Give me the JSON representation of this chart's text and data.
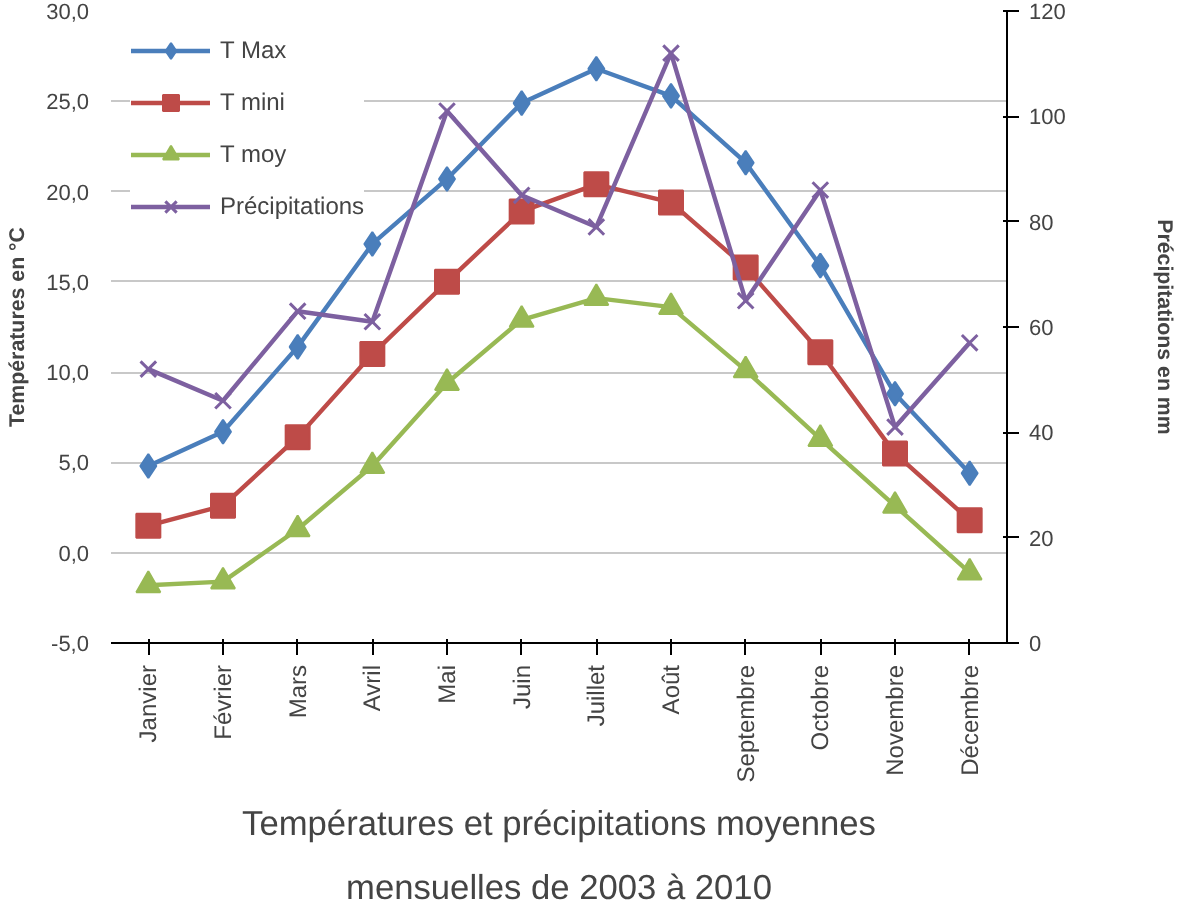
{
  "chart_data": {
    "type": "line",
    "title": "Températures et précipitations moyennes\nmensuelles de 2003 à 2010",
    "ylabel": "Températures en °C",
    "y2label": "Précipitations en mm",
    "categories": [
      "Janvier",
      "Février",
      "Mars",
      "Avril",
      "Mai",
      "Juin",
      "Juillet",
      "Août",
      "Septembre",
      "Octobre",
      "Novembre",
      "Décembre"
    ],
    "series": [
      {
        "name": "T Max",
        "color": "#4a7ebb",
        "marker": "diamond",
        "values": [
          4.8,
          6.7,
          11.4,
          17.1,
          20.7,
          24.9,
          26.8,
          25.3,
          21.6,
          15.9,
          8.8,
          4.4
        ]
      },
      {
        "name": "T mini",
        "color": "#be4b48",
        "marker": "square",
        "values": [
          1.5,
          2.6,
          6.4,
          11.0,
          15.0,
          18.9,
          20.4,
          19.4,
          15.8,
          11.1,
          5.5,
          1.8
        ]
      },
      {
        "name": "T moy",
        "color": "#98b954",
        "marker": "triangle",
        "values": [
          -1.8,
          -1.6,
          1.3,
          4.8,
          9.4,
          12.9,
          14.1,
          13.6,
          10.1,
          6.3,
          2.6,
          -1.1
        ]
      },
      {
        "name": "Précipitations",
        "color": "#7d60a0",
        "marker": "cross",
        "axis": "y2",
        "values": [
          52,
          46,
          63,
          61,
          101,
          85,
          79,
          112,
          65,
          86,
          41,
          57
        ]
      }
    ],
    "ylim": [
      -5,
      30
    ],
    "yticks": [
      {
        "value": -5,
        "label": "-5,0"
      },
      {
        "value": 0,
        "label": "0,0"
      },
      {
        "value": 5,
        "label": "5,0"
      },
      {
        "value": 10,
        "label": "10,0"
      },
      {
        "value": 15,
        "label": "15,0"
      },
      {
        "value": 20,
        "label": "20,0"
      },
      {
        "value": 25,
        "label": "25,0"
      },
      {
        "value": 30,
        "label": "30,0"
      }
    ],
    "y2lim": [
      0,
      120
    ],
    "y2ticks": [
      0,
      20,
      40,
      60,
      80,
      100,
      120
    ],
    "grid": "y",
    "legend": "top left",
    "line_style": "solid"
  }
}
